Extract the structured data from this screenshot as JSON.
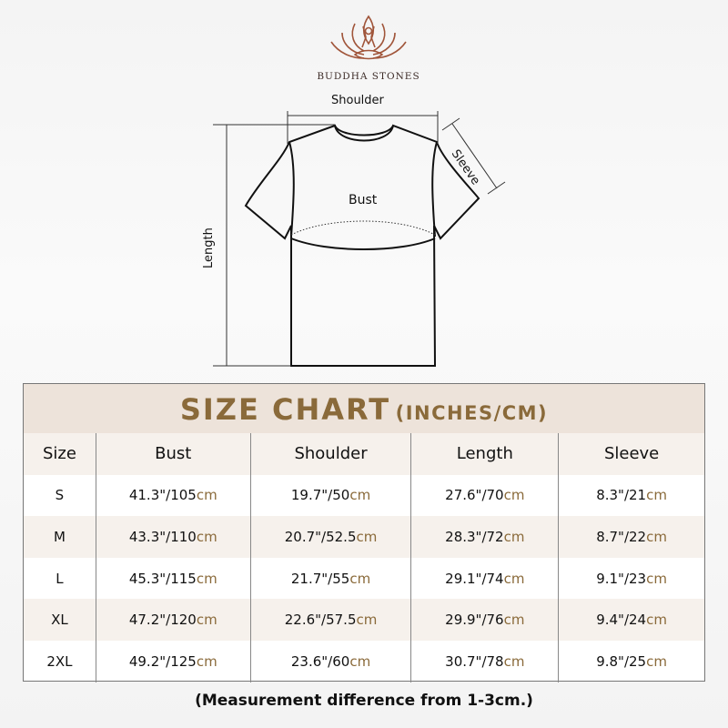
{
  "brand": {
    "name": "BUDDHA STONES",
    "logo_icon": "lotus-meditation-icon",
    "color": "#a0553a"
  },
  "diagram": {
    "labels": {
      "shoulder": "Shoulder",
      "sleeve": "Sleeve",
      "bust": "Bust",
      "length": "Length"
    }
  },
  "table": {
    "title": "SIZE CHART",
    "units": "(INCHES/CM)",
    "headers": [
      "Size",
      "Bust",
      "Shoulder",
      "Length",
      "Sleeve"
    ],
    "rows": [
      {
        "size": "S",
        "cells": [
          [
            "41.3\"/105",
            "cm"
          ],
          [
            "19.7\"/50",
            "cm"
          ],
          [
            "27.6\"/70",
            "cm"
          ],
          [
            "8.3\"/21",
            "cm"
          ]
        ]
      },
      {
        "size": "M",
        "cells": [
          [
            "43.3\"/110",
            "cm"
          ],
          [
            "20.7\"/52.5",
            "cm"
          ],
          [
            "28.3\"/72",
            "cm"
          ],
          [
            "8.7\"/22",
            "cm"
          ]
        ]
      },
      {
        "size": "L",
        "cells": [
          [
            "45.3\"/115",
            "cm"
          ],
          [
            "21.7\"/55",
            "cm"
          ],
          [
            "29.1\"/74",
            "cm"
          ],
          [
            "9.1\"/23",
            "cm"
          ]
        ]
      },
      {
        "size": "XL",
        "cells": [
          [
            "47.2\"/120",
            "cm"
          ],
          [
            "22.6\"/57.5",
            "cm"
          ],
          [
            "29.9\"/76",
            "cm"
          ],
          [
            "9.4\"/24",
            "cm"
          ]
        ]
      },
      {
        "size": "2XL",
        "cells": [
          [
            "49.2\"/125",
            "cm"
          ],
          [
            "23.6\"/60",
            "cm"
          ],
          [
            "30.7\"/78",
            "cm"
          ],
          [
            "9.8\"/25",
            "cm"
          ]
        ]
      }
    ],
    "accent": "#8a6a3a",
    "band_color": "#ede3da"
  },
  "footnote": "(Measurement difference from 1-3cm.)"
}
